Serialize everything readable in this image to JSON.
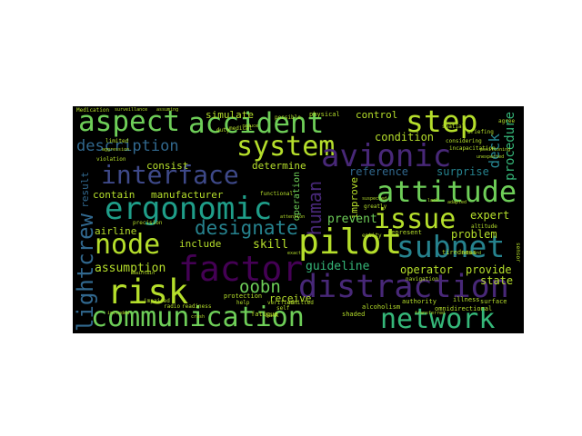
{
  "words": {
    "aspect": "aspect",
    "accident": "accident",
    "step": "step",
    "system": "system",
    "interface": "interface",
    "avionic": "avionic",
    "description": "description",
    "attitude": "attitude",
    "ergonomic": "ergonomic",
    "issue": "issue",
    "node": "node",
    "designate": "designate",
    "pilot": "pilot",
    "subnet": "subnet",
    "factor": "factor",
    "risk": "risk",
    "distraction": "distraction",
    "oobn": "oobn",
    "communication": "communication",
    "network": "network",
    "flightcrew": "flightcrew",
    "human": "human",
    "simulate": "simulate",
    "control": "control",
    "condition": "condition",
    "reference": "reference",
    "surprise": "surprise",
    "deck": "deck",
    "procedure": "procedure",
    "consist": "consist",
    "determine": "determine",
    "contain": "contain",
    "manufacturer": "manufacturer",
    "improve": "improve",
    "prevent": "prevent",
    "expert": "expert",
    "airline": "airline",
    "include": "include",
    "skill": "skill",
    "problem": "problem",
    "assumption": "assumption",
    "guideline": "guideline",
    "operator": "operator",
    "provide": "provide",
    "state": "state",
    "receive": "receive",
    "operation": "operation",
    "result": "result",
    "physical": "physical",
    "protection": "protection",
    "alcoholism": "alcoholism",
    "shaded": "shaded",
    "tiredness": "tiredness",
    "authority": "authority",
    "fatigue": "fatigue",
    "medical": "medical",
    "limited": "limited",
    "violation": "violation",
    "considering": "considering",
    "briefing": "briefing",
    "omnidirectional": "omnidirectional",
    "represent": "represent",
    "navigation": "navigation",
    "illness": "illness",
    "surface": "surface",
    "possible": "possible",
    "functional": "functional",
    "verified": "verified",
    "duty": "duty",
    "transferred": "transferred",
    "entity": "entity",
    "greatly": "greatly",
    "incapacitation": "incapacitation",
    "positioning": "positioning",
    "agree": "agree",
    "help": "help",
    "bank": "bank",
    "admitted": "admitted",
    "included": "included",
    "aggression": "aggression",
    "impaired": "impaired",
    "radio": "radio",
    "readiness": "readiness",
    "medication": "Medication",
    "surveillance": "surveillance",
    "assuming": "assuming",
    "spatial": "spatial",
    "precision": "precision",
    "altitude": "altitude",
    "crash": "crash",
    "adapted": "adapted",
    "attention": "attention",
    "exact": "exact",
    "lack": "lack",
    "self": "self",
    "reduce": "reduce",
    "onboard": "onboard",
    "suspected": "suspected",
    "unexpected": "unexpected",
    "maintain": "maintain",
    "sensor": "sensor"
  },
  "colors": {
    "background": "#000000",
    "yellow": "#b5de2b",
    "lightgreen": "#6ece58",
    "green": "#35b779",
    "teal": "#1f9e89",
    "cyan": "#26828e",
    "blue": "#31688e",
    "indigo": "#3e4989",
    "purple": "#482878",
    "darkpurple": "#440154"
  }
}
